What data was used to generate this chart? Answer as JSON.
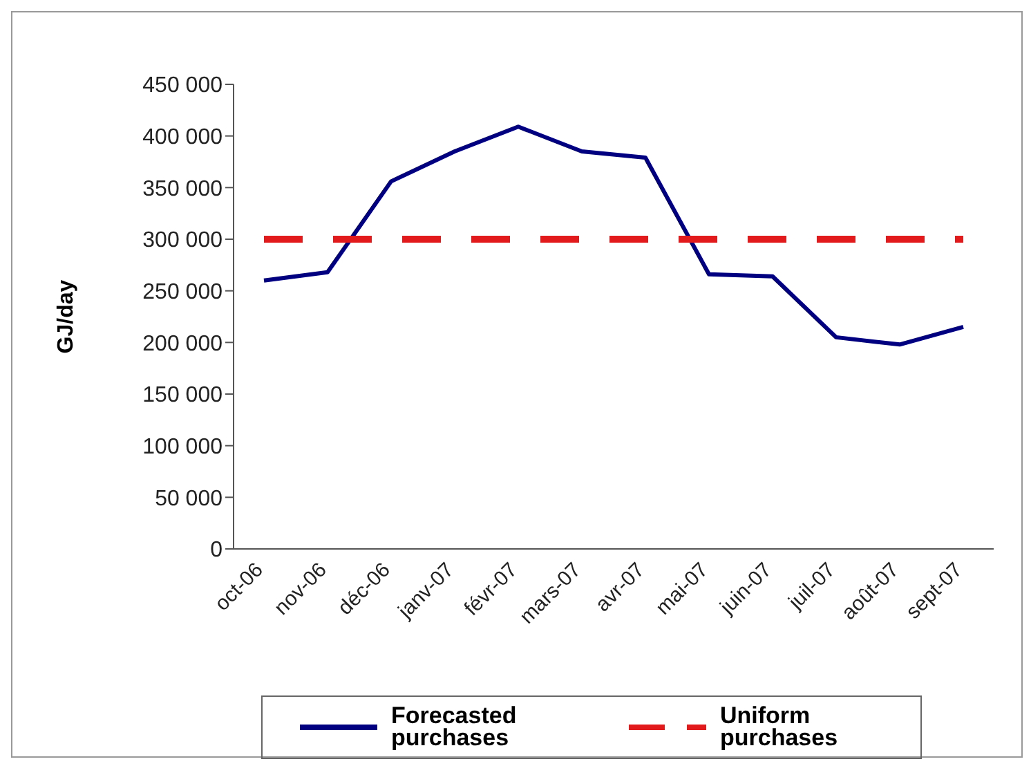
{
  "chart_data": {
    "type": "line",
    "ylabel": "GJ/day",
    "categories": [
      "oct-06",
      "nov-06",
      "déc-06",
      "janv-07",
      "févr-07",
      "mars-07",
      "avr-07",
      "mai-07",
      "juin-07",
      "juil-07",
      "août-07",
      "sept-07"
    ],
    "series": [
      {
        "name": "Forecasted purchases",
        "color": "#000080",
        "line_style": "solid",
        "values": [
          260000,
          268000,
          356000,
          385000,
          409000,
          385000,
          379000,
          266000,
          264000,
          205000,
          198000,
          215000
        ]
      },
      {
        "name": "Uniform purchases",
        "color": "#e31a1c",
        "line_style": "dashed",
        "values": [
          300000,
          300000,
          300000,
          300000,
          300000,
          300000,
          300000,
          300000,
          300000,
          300000,
          300000,
          300000
        ]
      }
    ],
    "ylim": [
      0,
      450000
    ],
    "yticks": [
      {
        "value": 0,
        "label": "0"
      },
      {
        "value": 50000,
        "label": "50 000"
      },
      {
        "value": 100000,
        "label": "100 000"
      },
      {
        "value": 150000,
        "label": "150 000"
      },
      {
        "value": 200000,
        "label": "200 000"
      },
      {
        "value": 250000,
        "label": "250 000"
      },
      {
        "value": 300000,
        "label": "300 000"
      },
      {
        "value": 350000,
        "label": "350 000"
      },
      {
        "value": 400000,
        "label": "400 000"
      },
      {
        "value": 450000,
        "label": "450 000"
      }
    ],
    "grid": false,
    "legend": "bottom",
    "marker": "none"
  }
}
